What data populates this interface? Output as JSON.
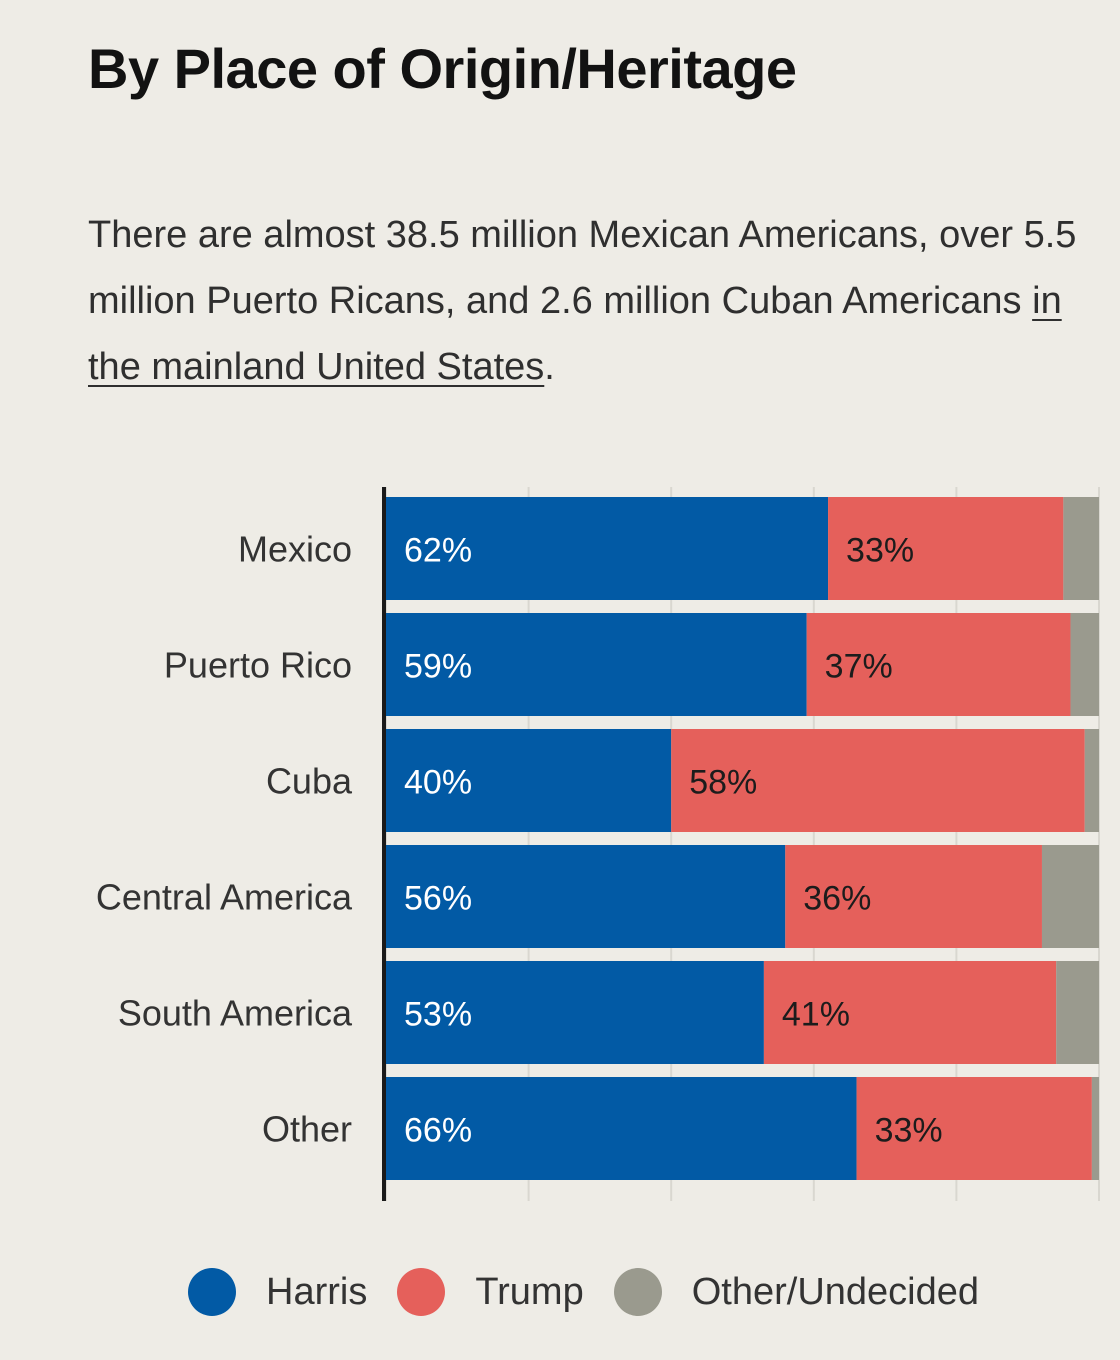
{
  "title": "By Place of Origin/Heritage",
  "description": {
    "text": "There are almost 38.5 million Mexican Americans, over 5.5 million Puerto Ricans, and 2.6 million Cuban Americans ",
    "link_text": "in the mainland United States",
    "end": "."
  },
  "colors": {
    "harris": "#025aa5",
    "trump": "#e5605b",
    "other": "#9a9a8e",
    "background": "#eeece6"
  },
  "chart_data": {
    "type": "bar",
    "orientation": "horizontal",
    "stacked": true,
    "title": "By Place of Origin/Heritage",
    "categories": [
      "Mexico",
      "Puerto Rico",
      "Cuba",
      "Central America",
      "South America",
      "Other"
    ],
    "series": [
      {
        "name": "Harris",
        "values": [
          62,
          59,
          40,
          56,
          53,
          66
        ],
        "labels": [
          "62%",
          "59%",
          "40%",
          "56%",
          "53%",
          "66%"
        ]
      },
      {
        "name": "Trump",
        "values": [
          33,
          37,
          58,
          36,
          41,
          33
        ],
        "labels": [
          "33%",
          "37%",
          "58%",
          "36%",
          "41%",
          "33%"
        ]
      },
      {
        "name": "Other/Undecided",
        "values": [
          5,
          4,
          2,
          8,
          6,
          1
        ]
      }
    ],
    "xlim": [
      0,
      100
    ],
    "grid": true,
    "legend": "bottom"
  },
  "legend": [
    {
      "label": "Harris",
      "color_key": "harris"
    },
    {
      "label": "Trump",
      "color_key": "trump"
    },
    {
      "label": "Other/Undecided",
      "color_key": "other"
    }
  ]
}
